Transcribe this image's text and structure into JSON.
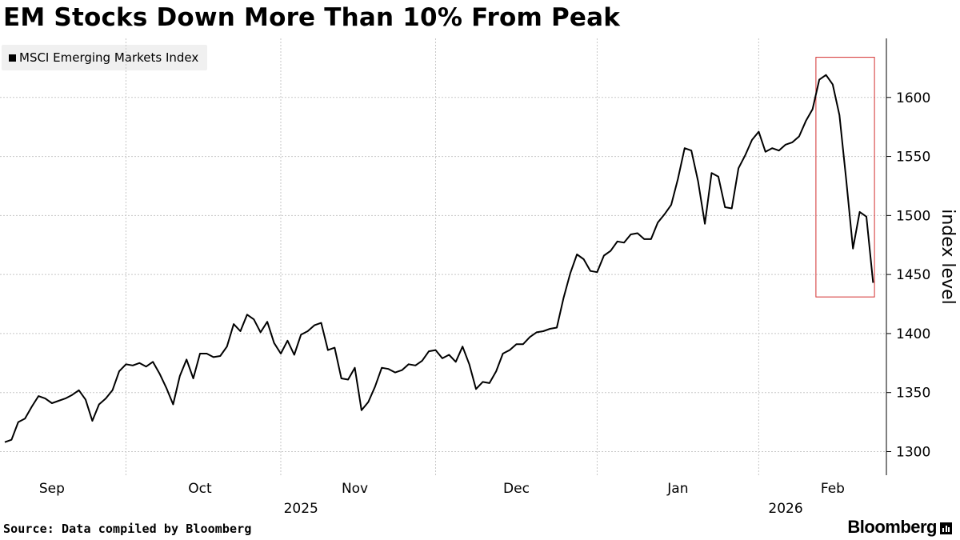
{
  "title": "EM Stocks Down More Than 10% From Peak",
  "source": "Source: Data compiled by Bloomberg",
  "brand": "Bloomberg",
  "chart_data": {
    "type": "line",
    "title": "EM Stocks Down More Than 10% From Peak",
    "ylabel": "index level",
    "xlabel": "",
    "ylim": [
      1280,
      1650
    ],
    "yticks": [
      1300,
      1350,
      1400,
      1450,
      1500,
      1550,
      1600
    ],
    "xlim": [
      0,
      128
    ],
    "month_ticks": [
      {
        "label": "Sep",
        "x": 7
      },
      {
        "label": "Oct",
        "x": 29
      },
      {
        "label": "Nov",
        "x": 52
      },
      {
        "label": "Dec",
        "x": 76
      },
      {
        "label": "Jan",
        "x": 100
      },
      {
        "label": "Feb",
        "x": 123
      }
    ],
    "month_boundaries": [
      -4,
      18,
      41,
      64,
      88,
      112
    ],
    "years": [
      {
        "label": "2025",
        "x": 44
      },
      {
        "label": "2026",
        "x": 116
      }
    ],
    "grid": true,
    "legend": [
      "MSCI Emerging Markets Index"
    ],
    "series": [
      {
        "name": "MSCI Emerging Markets Index",
        "color": "#000000",
        "values": [
          1308,
          1310,
          1325,
          1328,
          1338,
          1347,
          1345,
          1341,
          1343,
          1345,
          1348,
          1352,
          1344,
          1326,
          1340,
          1345,
          1352,
          1368,
          1374,
          1373,
          1375,
          1372,
          1376,
          1366,
          1354,
          1340,
          1364,
          1378,
          1362,
          1383,
          1383,
          1380,
          1381,
          1389,
          1408,
          1402,
          1416,
          1412,
          1401,
          1410,
          1392,
          1383,
          1394,
          1382,
          1399,
          1402,
          1407,
          1409,
          1386,
          1388,
          1362,
          1361,
          1371,
          1335,
          1342,
          1355,
          1371,
          1370,
          1367,
          1369,
          1374,
          1373,
          1377,
          1385,
          1386,
          1379,
          1382,
          1376,
          1389,
          1374,
          1353,
          1359,
          1358,
          1368,
          1383,
          1386,
          1391,
          1391,
          1397,
          1401,
          1402,
          1404,
          1405,
          1430,
          1451,
          1467,
          1463,
          1453,
          1452,
          1466,
          1470,
          1478,
          1477,
          1484,
          1485,
          1480,
          1480,
          1494,
          1501,
          1509,
          1531,
          1557,
          1555,
          1529,
          1493,
          1536,
          1533,
          1507,
          1506,
          1540,
          1551,
          1564,
          1571,
          1554,
          1557,
          1555,
          1560,
          1562,
          1567,
          1580,
          1590,
          1615,
          1619,
          1611,
          1585,
          1530,
          1472,
          1503,
          1499,
          1443
        ]
      }
    ],
    "annotations": [
      {
        "type": "box",
        "color": "#d32f2f",
        "x_range": [
          120.5,
          129.2
        ],
        "y_range": [
          1431,
          1634
        ],
        "description": "highlight of recent drop from peak"
      }
    ]
  }
}
